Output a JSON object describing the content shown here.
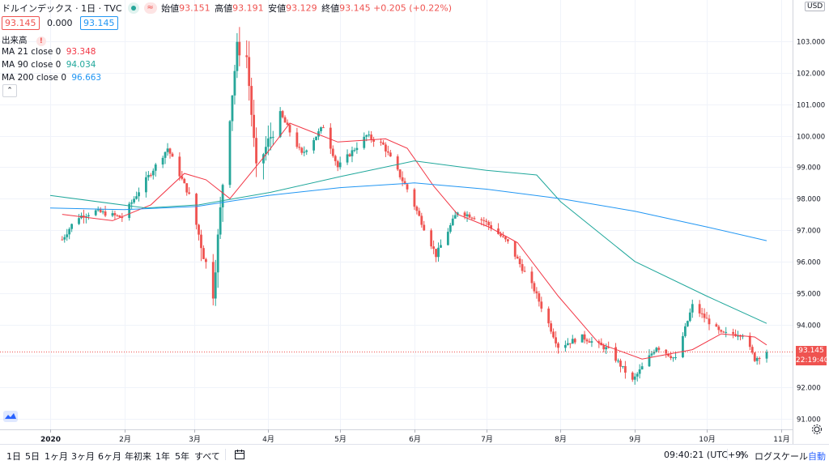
{
  "header": {
    "symbol": "ドルインデックス · 1日 · TVC",
    "open_label": "始値",
    "open_value": "93.151",
    "high_label": "高値",
    "high_value": "93.191",
    "low_label": "安値",
    "low_value": "93.129",
    "close_label": "終値",
    "close_value": "93.145",
    "change": "+0.205 (+0.22%)",
    "bid": "93.145",
    "spread": "0.000",
    "ask": "93.145",
    "live_icon": "live-dot-icon",
    "wave_icon": "wave-icon"
  },
  "indicators": {
    "volume_label": "出来高",
    "ma21_label": "MA 21 close 0",
    "ma21_value": "93.348",
    "ma90_label": "MA 90 close 0",
    "ma90_value": "94.034",
    "ma200_label": "MA 200 close 0",
    "ma200_value": "96.663"
  },
  "colors": {
    "up": "#26a69a",
    "down": "#ef5350",
    "ma21": "#f23645",
    "ma90": "#1fa79b",
    "ma200": "#2196f3",
    "grid": "#f0f3fa"
  },
  "price_axis": {
    "currency": "USD",
    "last_price": "93.145",
    "countdown": "22:19:40"
  },
  "chart_data": {
    "type": "candlestick",
    "title": "ドルインデックス · 1日 · TVC",
    "ylim": [
      90.8,
      104.0
    ],
    "y_ticks": [
      91.0,
      92.0,
      93.0,
      94.0,
      95.0,
      96.0,
      97.0,
      98.0,
      99.0,
      100.0,
      101.0,
      102.0,
      103.0
    ],
    "y_tick_labels": [
      "91.000",
      "92.000",
      "93.000",
      "94.000",
      "95.000",
      "96.000",
      "97.000",
      "98.000",
      "99.000",
      "100.000",
      "101.000",
      "102.000",
      "103.000"
    ],
    "x_tick_labels": [
      "2020",
      "2月",
      "3月",
      "4月",
      "5月",
      "6月",
      "7月",
      "8月",
      "9月",
      "10月",
      "11月"
    ],
    "grid": true,
    "close_path": [
      {
        "x": "2020-01-06",
        "y": 96.7
      },
      {
        "x": "2020-01-12",
        "y": 97.4
      },
      {
        "x": "2020-01-20",
        "y": 97.6
      },
      {
        "x": "2020-01-31",
        "y": 97.4
      },
      {
        "x": "2020-02-10",
        "y": 98.6
      },
      {
        "x": "2020-02-19",
        "y": 99.6
      },
      {
        "x": "2020-02-28",
        "y": 98.1
      },
      {
        "x": "2020-03-09",
        "y": 95.0
      },
      {
        "x": "2020-03-13",
        "y": 98.5
      },
      {
        "x": "2020-03-19",
        "y": 102.8
      },
      {
        "x": "2020-03-23",
        "y": 102.5
      },
      {
        "x": "2020-03-27",
        "y": 98.9
      },
      {
        "x": "2020-04-06",
        "y": 100.7
      },
      {
        "x": "2020-04-15",
        "y": 99.4
      },
      {
        "x": "2020-04-24",
        "y": 100.3
      },
      {
        "x": "2020-04-30",
        "y": 99.0
      },
      {
        "x": "2020-05-12",
        "y": 100.0
      },
      {
        "x": "2020-05-19",
        "y": 99.7
      },
      {
        "x": "2020-05-29",
        "y": 98.3
      },
      {
        "x": "2020-06-10",
        "y": 96.2
      },
      {
        "x": "2020-06-19",
        "y": 97.6
      },
      {
        "x": "2020-06-30",
        "y": 97.3
      },
      {
        "x": "2020-07-10",
        "y": 96.6
      },
      {
        "x": "2020-07-21",
        "y": 95.1
      },
      {
        "x": "2020-07-31",
        "y": 93.3
      },
      {
        "x": "2020-08-10",
        "y": 93.6
      },
      {
        "x": "2020-08-21",
        "y": 93.2
      },
      {
        "x": "2020-08-31",
        "y": 92.2
      },
      {
        "x": "2020-09-10",
        "y": 93.3
      },
      {
        "x": "2020-09-18",
        "y": 92.9
      },
      {
        "x": "2020-09-25",
        "y": 94.6
      },
      {
        "x": "2020-10-07",
        "y": 93.7
      },
      {
        "x": "2020-10-16",
        "y": 93.7
      },
      {
        "x": "2020-10-21",
        "y": 92.9
      },
      {
        "x": "2020-10-26",
        "y": 93.145
      }
    ],
    "series": [
      {
        "name": "MA 21 close 0",
        "color": "#f23645",
        "values": [
          {
            "x": "2020-01-06",
            "y": 97.5
          },
          {
            "x": "2020-01-27",
            "y": 97.3
          },
          {
            "x": "2020-02-12",
            "y": 97.8
          },
          {
            "x": "2020-02-26",
            "y": 98.8
          },
          {
            "x": "2020-03-06",
            "y": 98.6
          },
          {
            "x": "2020-03-16",
            "y": 98.0
          },
          {
            "x": "2020-03-31",
            "y": 99.4
          },
          {
            "x": "2020-04-10",
            "y": 100.4
          },
          {
            "x": "2020-04-30",
            "y": 99.8
          },
          {
            "x": "2020-05-20",
            "y": 99.9
          },
          {
            "x": "2020-05-29",
            "y": 99.6
          },
          {
            "x": "2020-06-09",
            "y": 98.4
          },
          {
            "x": "2020-06-19",
            "y": 97.5
          },
          {
            "x": "2020-07-02",
            "y": 97.1
          },
          {
            "x": "2020-07-14",
            "y": 96.6
          },
          {
            "x": "2020-07-31",
            "y": 94.9
          },
          {
            "x": "2020-08-17",
            "y": 93.4
          },
          {
            "x": "2020-09-04",
            "y": 92.9
          },
          {
            "x": "2020-09-25",
            "y": 93.2
          },
          {
            "x": "2020-10-07",
            "y": 93.7
          },
          {
            "x": "2020-10-21",
            "y": 93.6
          },
          {
            "x": "2020-10-26",
            "y": 93.348
          }
        ]
      },
      {
        "name": "MA 90 close 0",
        "color": "#1fa79b",
        "values": [
          {
            "x": "2020-01-01",
            "y": 98.1
          },
          {
            "x": "2020-02-10",
            "y": 97.7
          },
          {
            "x": "2020-03-03",
            "y": 97.8
          },
          {
            "x": "2020-04-02",
            "y": 98.2
          },
          {
            "x": "2020-05-01",
            "y": 98.7
          },
          {
            "x": "2020-06-01",
            "y": 99.2
          },
          {
            "x": "2020-07-01",
            "y": 98.9
          },
          {
            "x": "2020-07-22",
            "y": 98.75
          },
          {
            "x": "2020-08-01",
            "y": 97.9
          },
          {
            "x": "2020-09-01",
            "y": 96.0
          },
          {
            "x": "2020-10-01",
            "y": 94.9
          },
          {
            "x": "2020-10-26",
            "y": 94.034
          }
        ]
      },
      {
        "name": "MA 200 close 0",
        "color": "#2196f3",
        "values": [
          {
            "x": "2020-01-01",
            "y": 97.7
          },
          {
            "x": "2020-02-01",
            "y": 97.65
          },
          {
            "x": "2020-03-02",
            "y": 97.75
          },
          {
            "x": "2020-04-01",
            "y": 98.1
          },
          {
            "x": "2020-05-01",
            "y": 98.35
          },
          {
            "x": "2020-06-01",
            "y": 98.5
          },
          {
            "x": "2020-07-01",
            "y": 98.3
          },
          {
            "x": "2020-08-01",
            "y": 98.0
          },
          {
            "x": "2020-09-01",
            "y": 97.6
          },
          {
            "x": "2020-10-01",
            "y": 97.1
          },
          {
            "x": "2020-10-26",
            "y": 96.663
          }
        ]
      }
    ]
  },
  "toolbar": {
    "ranges": [
      "1日",
      "5日",
      "1ヶ月",
      "3ヶ月",
      "6ヶ月",
      "年初来",
      "1年",
      "5年",
      "すべて"
    ],
    "calendar_icon": "calendar-range-icon",
    "time": "09:40:21 (UTC+9)",
    "percent_label": "%",
    "log_label": "ログスケール",
    "auto_label": "自動",
    "settings_icon": "gear-icon"
  }
}
